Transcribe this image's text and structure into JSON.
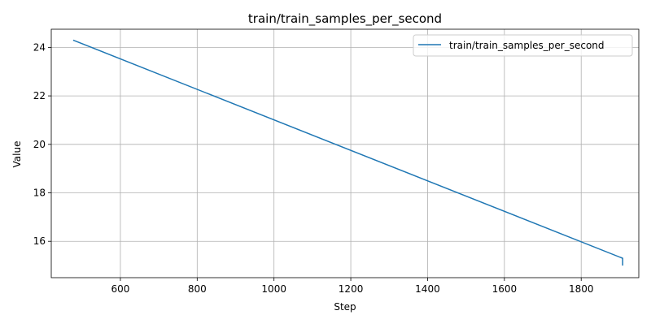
{
  "chart_data": {
    "type": "line",
    "title": "train/train_samples_per_second",
    "xlabel": "Step",
    "ylabel": "Value",
    "xlim": [
      420,
      1950
    ],
    "ylim": [
      14.5,
      24.75
    ],
    "x_ticks": [
      600,
      800,
      1000,
      1200,
      1400,
      1600,
      1800
    ],
    "y_ticks": [
      16,
      18,
      20,
      22,
      24
    ],
    "grid": true,
    "legend_position": "top-right",
    "series": [
      {
        "name": "train/train_samples_per_second",
        "color": "#1f77b4",
        "x": [
          477,
          1908,
          1908
        ],
        "y": [
          24.3,
          15.3,
          15.0
        ]
      }
    ]
  }
}
